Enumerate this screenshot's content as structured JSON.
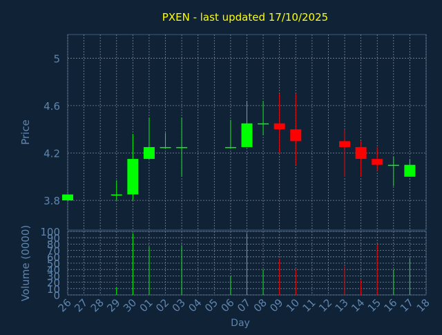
{
  "colors": {
    "background": "#0f2236",
    "grid": "#7f8c99",
    "axis_text": "#5f86b0",
    "title": "#ffff00",
    "up": "#00ff00",
    "down": "#ff0000",
    "frame": "#3c5a78"
  },
  "chart_data": [
    {
      "type": "candlestick",
      "title": "PXEN - last updated 17/10/2025",
      "ylabel": "Price",
      "xlabel": "",
      "ylim": [
        3.55,
        5.2
      ],
      "yticks": [
        3.8,
        4.2,
        4.6,
        5
      ],
      "ytick_labels": [
        "3.8",
        "4.2",
        "4.6",
        "5"
      ],
      "grid": true,
      "x_categories": [
        "26",
        "27",
        "28",
        "29",
        "30",
        "01",
        "02",
        "03",
        "04",
        "05",
        "06",
        "07",
        "08",
        "09",
        "10",
        "11",
        "12",
        "13",
        "14",
        "15",
        "16",
        "17",
        "18"
      ],
      "candles": [
        {
          "day": "26",
          "open": 3.8,
          "high": 3.85,
          "low": 3.8,
          "close": 3.85
        },
        {
          "day": "29",
          "open": 3.85,
          "high": 3.97,
          "low": 3.8,
          "close": 3.85
        },
        {
          "day": "30",
          "open": 3.85,
          "high": 4.36,
          "low": 3.8,
          "close": 4.15
        },
        {
          "day": "01",
          "open": 4.15,
          "high": 4.5,
          "low": 4.15,
          "close": 4.25
        },
        {
          "day": "02",
          "open": 4.25,
          "high": 4.37,
          "low": 4.25,
          "close": 4.25
        },
        {
          "day": "03",
          "open": 4.25,
          "high": 4.5,
          "low": 4.0,
          "close": 4.25
        },
        {
          "day": "06",
          "open": 4.25,
          "high": 4.48,
          "low": 4.25,
          "close": 4.25
        },
        {
          "day": "07",
          "open": 4.25,
          "high": 4.64,
          "low": 4.25,
          "close": 4.45
        },
        {
          "day": "08",
          "open": 4.45,
          "high": 4.64,
          "low": 4.35,
          "close": 4.45
        },
        {
          "day": "09",
          "open": 4.45,
          "high": 4.7,
          "low": 4.2,
          "close": 4.4
        },
        {
          "day": "10",
          "open": 4.4,
          "high": 4.7,
          "low": 4.1,
          "close": 4.3
        },
        {
          "day": "13",
          "open": 4.3,
          "high": 4.4,
          "low": 4.0,
          "close": 4.25
        },
        {
          "day": "14",
          "open": 4.25,
          "high": 4.3,
          "low": 4.0,
          "close": 4.15
        },
        {
          "day": "15",
          "open": 4.15,
          "high": 4.25,
          "low": 4.05,
          "close": 4.1
        },
        {
          "day": "16",
          "open": 4.1,
          "high": 4.17,
          "low": 3.92,
          "close": 4.1
        },
        {
          "day": "17",
          "open": 4.0,
          "high": 4.15,
          "low": 4.0,
          "close": 4.1
        }
      ]
    },
    {
      "type": "bar",
      "ylabel": "Volume (0000)",
      "xlabel": "Day",
      "ylim": [
        0,
        100
      ],
      "yticks": [
        0,
        10,
        20,
        30,
        40,
        50,
        60,
        70,
        80,
        90,
        100
      ],
      "ytick_labels": [
        "0",
        "10",
        "20",
        "30",
        "40",
        "50",
        "60",
        "70",
        "80",
        "90",
        "100"
      ],
      "grid": true,
      "categories": [
        "26",
        "27",
        "28",
        "29",
        "30",
        "01",
        "02",
        "03",
        "04",
        "05",
        "06",
        "07",
        "08",
        "09",
        "10",
        "11",
        "12",
        "13",
        "14",
        "15",
        "16",
        "17",
        "18"
      ],
      "volumes": [
        {
          "day": "29",
          "value": 12,
          "direction": "up"
        },
        {
          "day": "30",
          "value": 97,
          "direction": "up"
        },
        {
          "day": "01",
          "value": 76,
          "direction": "up"
        },
        {
          "day": "03",
          "value": 78,
          "direction": "up"
        },
        {
          "day": "06",
          "value": 30,
          "direction": "up"
        },
        {
          "day": "07",
          "value": 97,
          "direction": "up"
        },
        {
          "day": "08",
          "value": 40,
          "direction": "up"
        },
        {
          "day": "09",
          "value": 57,
          "direction": "down"
        },
        {
          "day": "10",
          "value": 40,
          "direction": "down"
        },
        {
          "day": "13",
          "value": 45,
          "direction": "down"
        },
        {
          "day": "14",
          "value": 23,
          "direction": "down"
        },
        {
          "day": "15",
          "value": 80,
          "direction": "down"
        },
        {
          "day": "16",
          "value": 40,
          "direction": "up"
        },
        {
          "day": "17",
          "value": 58,
          "direction": "up"
        }
      ]
    }
  ]
}
